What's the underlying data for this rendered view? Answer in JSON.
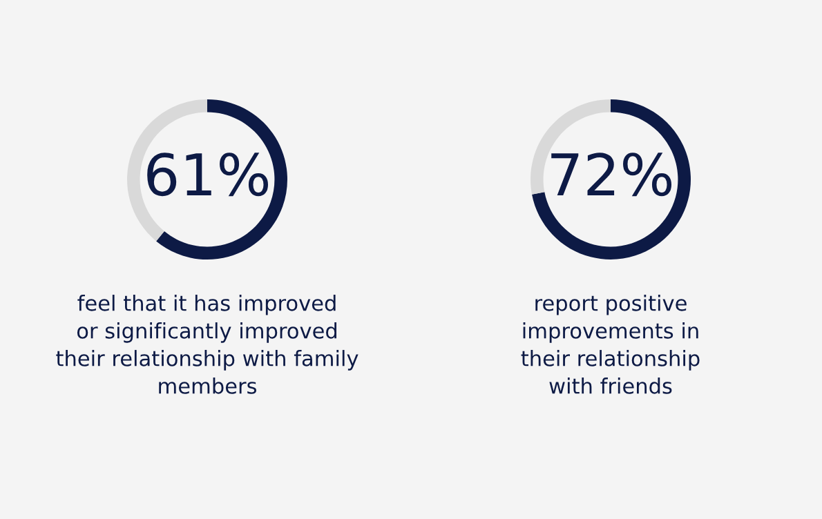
{
  "chart_data": [
    {
      "type": "donut",
      "categories": [
        null,
        null
      ],
      "values": [
        61,
        39
      ],
      "colors": [
        "#0d1a45",
        "#d9d9d9"
      ],
      "annotations": [
        "61%",
        "feel that it has improved\nor significantly improved\ntheir relationship with family\nmembers"
      ]
    },
    {
      "type": "donut",
      "categories": [
        null,
        null
      ],
      "values": [
        72,
        28
      ],
      "colors": [
        "#0d1a45",
        "#d9d9d9"
      ],
      "annotations": [
        "72%",
        "report positive\nimprovements in\ntheir relationship\nwith friends"
      ]
    }
  ]
}
